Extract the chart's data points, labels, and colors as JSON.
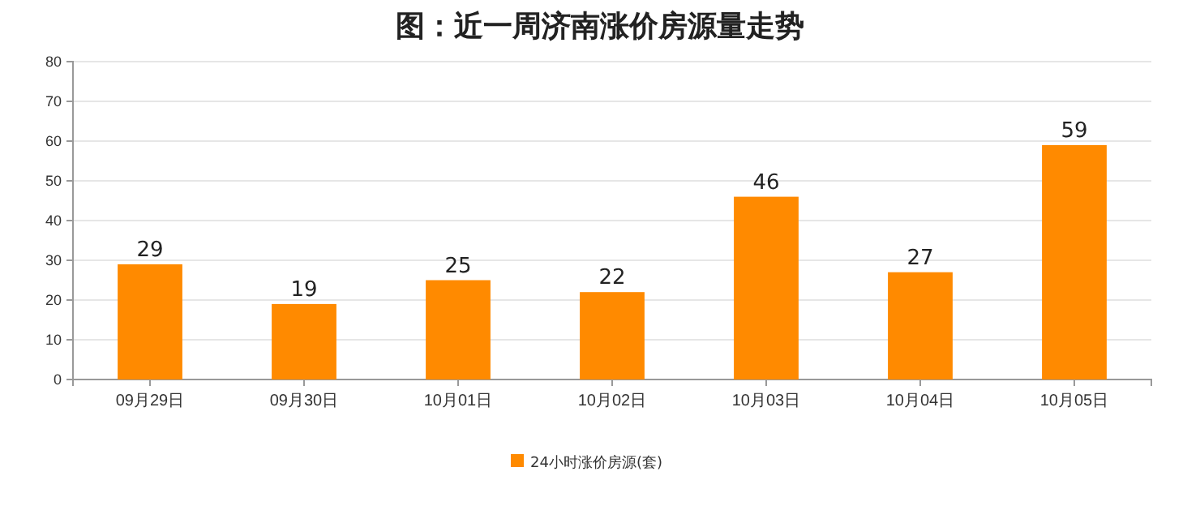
{
  "chart_data": {
    "type": "bar",
    "title": "图：近一周济南涨价房源量走势",
    "categories": [
      "09月29日",
      "09月30日",
      "10月01日",
      "10月02日",
      "10月03日",
      "10月04日",
      "10月05日"
    ],
    "series": [
      {
        "name": "24小时涨价房源(套)",
        "color": "#ff8a00",
        "values": [
          29,
          19,
          25,
          22,
          46,
          27,
          59
        ]
      }
    ],
    "ylim": [
      0,
      80
    ],
    "yticks": [
      0,
      10,
      20,
      30,
      40,
      50,
      60,
      70,
      80
    ],
    "grid": "y",
    "legend": "bottom",
    "data_labels": true
  }
}
